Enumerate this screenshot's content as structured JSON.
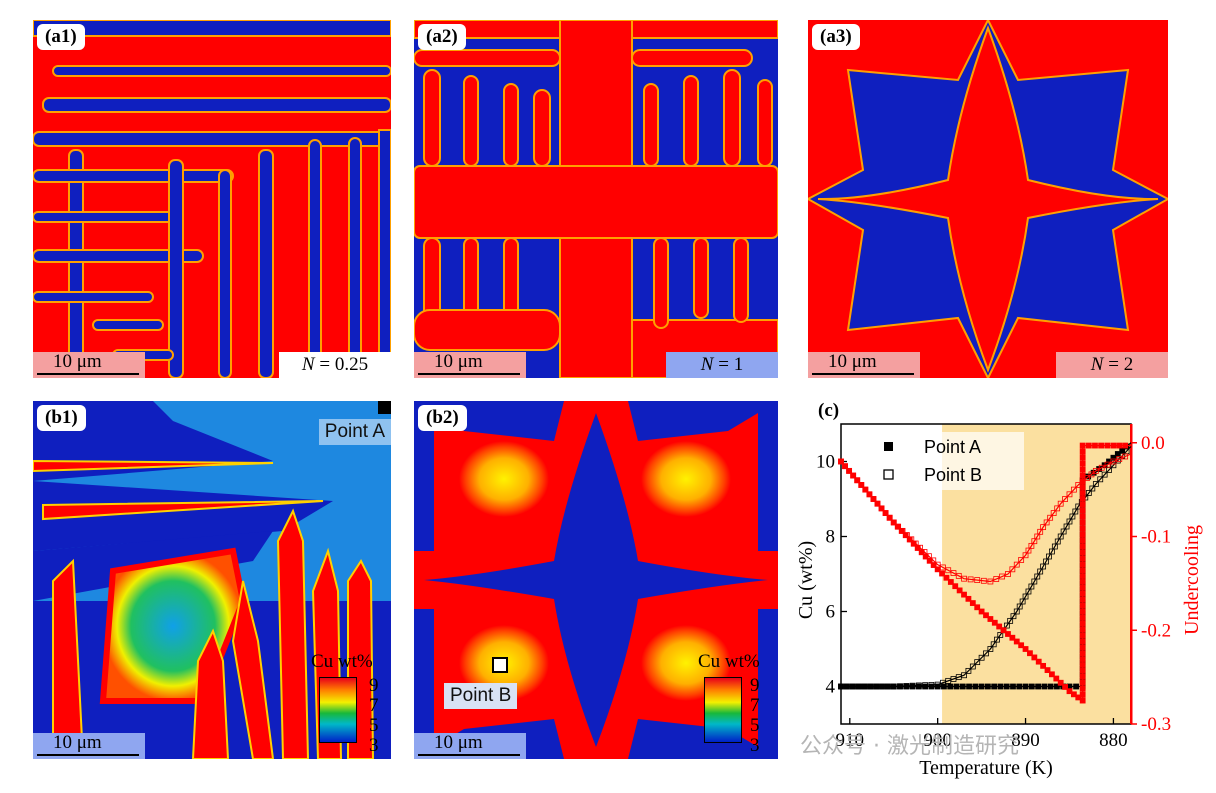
{
  "panels": {
    "a1": {
      "tag": "(a1)",
      "scale": "10 μm",
      "n_var": "N",
      "n_value": "= 0.25"
    },
    "a2": {
      "tag": "(a2)",
      "scale": "10 μm",
      "n_var": "N",
      "n_value": "= 1"
    },
    "a3": {
      "tag": "(a3)",
      "scale": "10 μm",
      "n_var": "N",
      "n_value": "= 2"
    },
    "b1": {
      "tag": "(b1)",
      "scale": "10 μm",
      "point_label": "Point A",
      "colorbar": {
        "title": "Cu wt%",
        "ticks": [
          "9",
          "7",
          "5",
          "3"
        ]
      }
    },
    "b2": {
      "tag": "(b2)",
      "scale": "10 μm",
      "point_label": "Point B",
      "colorbar": {
        "title": "Cu wt%",
        "ticks": [
          "9",
          "7",
          "5",
          "3"
        ]
      }
    }
  },
  "colors": {
    "red_phase": "#ff0000",
    "blue_phase": "#0f1fbf",
    "highlight": "#fbe0a0"
  },
  "chart_data": {
    "type": "line",
    "panel_tag": "(c)",
    "xlabel": "Temperature (K)",
    "ylabel_left": "Cu (wt%)",
    "ylabel_right": "Undercooling",
    "x_reversed": true,
    "xlim": [
      911,
      878
    ],
    "ylim_left": [
      3,
      11
    ],
    "ylim_right": [
      -0.3,
      0.02
    ],
    "x_ticks": [
      "910",
      "900",
      "890",
      "880"
    ],
    "x_tick_values": [
      910,
      900,
      890,
      880
    ],
    "y_left_ticks": [
      "4",
      "6",
      "8",
      "10"
    ],
    "y_left_tick_values": [
      4,
      6,
      8,
      10
    ],
    "y_right_ticks": [
      "0.0",
      "-0.1",
      "-0.2",
      "-0.3"
    ],
    "y_right_tick_values": [
      0.0,
      -0.1,
      -0.2,
      -0.3
    ],
    "highlight_x_range": [
      899.5,
      878
    ],
    "legend": [
      "Point A",
      "Point B"
    ],
    "series": [
      {
        "name": "Point A",
        "axis": "left",
        "marker": "filled-square",
        "x": [
          911,
          905,
          900,
          895,
          890,
          885,
          883.5,
          883.5,
          881,
          878
        ],
        "y": [
          4.0,
          4.0,
          4.0,
          4.0,
          4.0,
          4.0,
          4.0,
          9.5,
          9.9,
          10.5
        ]
      },
      {
        "name": "Point B",
        "axis": "left",
        "marker": "open-square",
        "x": [
          911,
          905,
          900,
          897,
          894,
          891,
          888,
          886,
          884,
          882,
          880,
          878
        ],
        "y": [
          4.0,
          4.0,
          4.05,
          4.3,
          5.0,
          6.0,
          7.2,
          8.0,
          8.8,
          9.4,
          9.9,
          10.4
        ]
      },
      {
        "name": "Undercooling A",
        "axis": "right",
        "marker": "filled-square",
        "x": [
          911,
          905,
          900,
          895,
          890,
          885,
          883.5,
          883.5,
          880,
          878
        ],
        "y": [
          -0.02,
          -0.085,
          -0.135,
          -0.18,
          -0.22,
          -0.265,
          -0.275,
          -0.003,
          -0.003,
          -0.003
        ]
      },
      {
        "name": "Undercooling B",
        "axis": "right",
        "marker": "open-square",
        "x": [
          911,
          905,
          900,
          897,
          894,
          892,
          890,
          888,
          886,
          884,
          882,
          880,
          878
        ],
        "y": [
          -0.02,
          -0.085,
          -0.13,
          -0.145,
          -0.148,
          -0.14,
          -0.12,
          -0.09,
          -0.065,
          -0.045,
          -0.03,
          -0.02,
          -0.012
        ]
      }
    ]
  },
  "watermark": {
    "text": "公众号 · 激光制造研究"
  }
}
